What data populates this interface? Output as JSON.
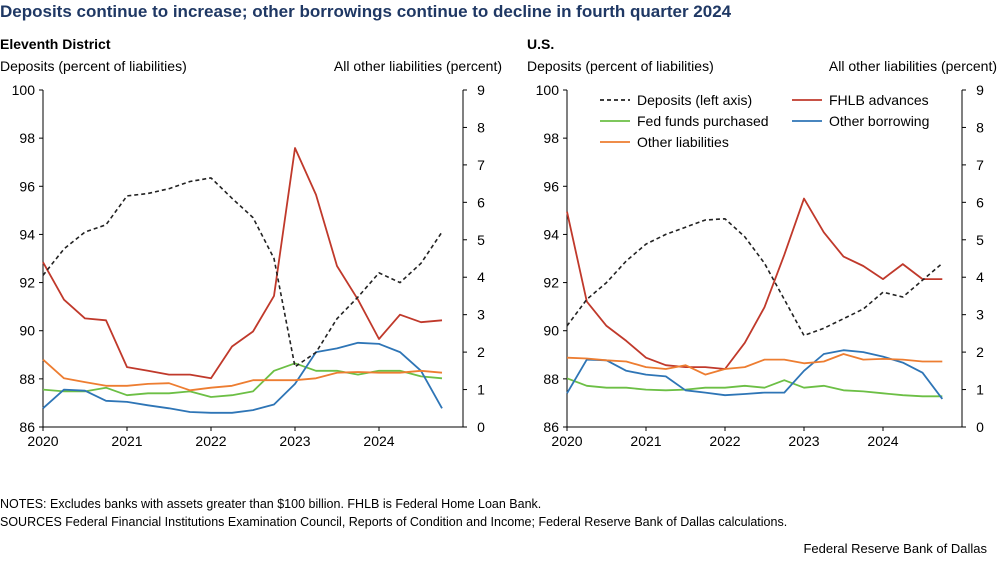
{
  "title": "Deposits continue to increase; other borrowings continue to decline in fourth quarter 2024",
  "notes": [
    "NOTES: Excludes banks with assets greater than $100 billion. FHLB is Federal Home Loan Bank.",
    "SOURCES Federal Financial Institutions Examination Council, Reports of Condition and Income; Federal Reserve Bank of Dallas calculations."
  ],
  "credit": "Federal Reserve Bank of Dallas",
  "colors": {
    "deposits": "#222222",
    "fhlb": "#c0392b",
    "fed_funds": "#6cbf45",
    "other_borrowing": "#2e75b6",
    "other_liabilities": "#ed7d31",
    "title": "#1f3864",
    "axis": "#000000"
  },
  "chart_data": [
    {
      "type": "line",
      "title": "Eleventh District",
      "ylabel_left": "Deposits (percent of liabilities)",
      "ylabel_right": "All other liabilities (percent)",
      "ylim_left": [
        86,
        100
      ],
      "yticks_left": [
        "86",
        "88",
        "90",
        "92",
        "94",
        "96",
        "98",
        "100"
      ],
      "ylim_right": [
        0,
        9
      ],
      "yticks_right": [
        "0",
        "1",
        "2",
        "3",
        "4",
        "5",
        "6",
        "7",
        "8",
        "9"
      ],
      "xlim": [
        2020.0,
        2025.0
      ],
      "xticks": [
        "2020",
        "2021",
        "2022",
        "2023",
        "2024"
      ],
      "grid": false,
      "legend": false,
      "x": [
        2020.0,
        2020.25,
        2020.5,
        2020.75,
        2021.0,
        2021.25,
        2021.5,
        2021.75,
        2022.0,
        2022.25,
        2022.5,
        2022.75,
        2023.0,
        2023.25,
        2023.5,
        2023.75,
        2024.0,
        2024.25,
        2024.5,
        2024.75
      ],
      "series": [
        {
          "key": "deposits",
          "axis": "left",
          "dashed": true,
          "values": [
            92.3,
            93.4,
            94.1,
            94.4,
            95.6,
            95.7,
            95.9,
            96.2,
            96.35,
            95.5,
            94.7,
            93.0,
            88.5,
            89.1,
            90.5,
            91.4,
            92.4,
            92.0,
            92.8,
            94.1
          ]
        },
        {
          "key": "fhlb",
          "axis": "right",
          "values": [
            4.4,
            3.4,
            2.9,
            2.85,
            1.6,
            1.5,
            1.4,
            1.4,
            1.3,
            2.15,
            2.55,
            3.5,
            7.45,
            6.2,
            4.3,
            3.4,
            2.35,
            3.0,
            2.8,
            2.85
          ]
        },
        {
          "key": "fed_funds",
          "axis": "right",
          "values": [
            1.0,
            0.95,
            0.95,
            1.05,
            0.85,
            0.9,
            0.9,
            0.95,
            0.8,
            0.85,
            0.95,
            1.5,
            1.7,
            1.5,
            1.5,
            1.4,
            1.5,
            1.5,
            1.35,
            1.3
          ]
        },
        {
          "key": "other_borrowing",
          "axis": "right",
          "values": [
            0.5,
            1.0,
            0.97,
            0.7,
            0.67,
            0.58,
            0.5,
            0.4,
            0.38,
            0.38,
            0.45,
            0.6,
            1.15,
            2.0,
            2.1,
            2.25,
            2.22,
            2.0,
            1.5,
            0.5
          ]
        },
        {
          "key": "other_liabilities",
          "axis": "right",
          "values": [
            1.8,
            1.3,
            1.2,
            1.1,
            1.1,
            1.15,
            1.17,
            0.98,
            1.05,
            1.1,
            1.25,
            1.25,
            1.25,
            1.3,
            1.45,
            1.47,
            1.45,
            1.45,
            1.5,
            1.45
          ]
        }
      ]
    },
    {
      "type": "line",
      "title": "U.S.",
      "ylabel_left": "Deposits (percent of liabilities)",
      "ylabel_right": "All other liabilities (percent)",
      "ylim_left": [
        86,
        100
      ],
      "yticks_left": [
        "86",
        "88",
        "90",
        "92",
        "94",
        "96",
        "98",
        "100"
      ],
      "ylim_right": [
        0,
        9
      ],
      "yticks_right": [
        "0",
        "1",
        "2",
        "3",
        "4",
        "5",
        "6",
        "7",
        "8",
        "9"
      ],
      "xlim": [
        2020.0,
        2025.0
      ],
      "xticks": [
        "2020",
        "2021",
        "2022",
        "2023",
        "2024"
      ],
      "grid": false,
      "legend": true,
      "legend_position": "top",
      "x": [
        2020.0,
        2020.25,
        2020.5,
        2020.75,
        2021.0,
        2021.25,
        2021.5,
        2021.75,
        2022.0,
        2022.25,
        2022.5,
        2022.75,
        2023.0,
        2023.25,
        2023.5,
        2023.75,
        2024.0,
        2024.25,
        2024.5,
        2024.75
      ],
      "series": [
        {
          "key": "deposits",
          "name": "Deposits (left axis)",
          "axis": "left",
          "dashed": true,
          "values": [
            90.2,
            91.3,
            92.0,
            92.9,
            93.6,
            94.0,
            94.3,
            94.6,
            94.65,
            93.9,
            92.8,
            91.3,
            89.8,
            90.1,
            90.5,
            90.9,
            91.6,
            91.4,
            92.1,
            92.8
          ]
        },
        {
          "key": "fhlb",
          "name": "FHLB advances",
          "axis": "right",
          "values": [
            5.75,
            3.35,
            2.7,
            2.3,
            1.85,
            1.65,
            1.6,
            1.6,
            1.55,
            2.25,
            3.2,
            4.6,
            6.1,
            5.2,
            4.55,
            4.3,
            3.95,
            4.35,
            3.95,
            3.95
          ]
        },
        {
          "key": "fed_funds",
          "name": "Fed funds purchased",
          "axis": "right",
          "values": [
            1.3,
            1.1,
            1.05,
            1.05,
            1.0,
            0.98,
            1.0,
            1.05,
            1.05,
            1.1,
            1.05,
            1.25,
            1.05,
            1.1,
            0.98,
            0.95,
            0.9,
            0.85,
            0.82,
            0.82
          ]
        },
        {
          "key": "other_borrowing",
          "name": "Other borrowing",
          "axis": "right",
          "values": [
            0.9,
            1.8,
            1.78,
            1.5,
            1.4,
            1.35,
            0.98,
            0.92,
            0.85,
            0.88,
            0.92,
            0.92,
            1.5,
            1.95,
            2.05,
            2.0,
            1.88,
            1.72,
            1.45,
            0.75
          ]
        },
        {
          "key": "other_liabilities",
          "name": "Other liabilities",
          "axis": "right",
          "values": [
            1.85,
            1.83,
            1.78,
            1.75,
            1.6,
            1.55,
            1.65,
            1.4,
            1.55,
            1.6,
            1.8,
            1.8,
            1.7,
            1.75,
            1.95,
            1.8,
            1.82,
            1.8,
            1.75,
            1.75
          ]
        }
      ]
    }
  ]
}
